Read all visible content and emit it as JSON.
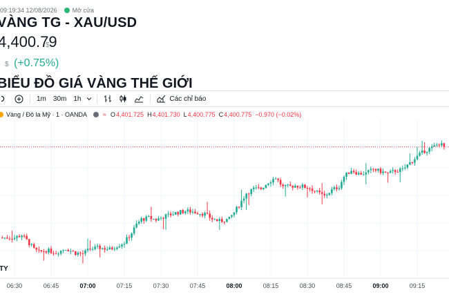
{
  "header": {
    "timestamp": "09:19:34 12/08/2026",
    "market_status": "Mở cửa",
    "title": "VÀNG TG - XAU/USD",
    "price": "4,400.79",
    "price_unit": "$",
    "change_unit": "$",
    "change_pct": "(+0.75%)",
    "chart_heading": "BIỂU ĐỒ GIÁ VÀNG THẾ GIỚI"
  },
  "toolbar": {
    "intervals": [
      "1m",
      "30m",
      "1h"
    ],
    "indicators_label": "Các chỉ báo"
  },
  "legend": {
    "symbol": "Vàng / Đô la Mỹ · 1 · OANDA",
    "o_label": "O",
    "o_value": "4,401.725",
    "h_label": "H",
    "h_value": "4,401.730",
    "l_label": "L",
    "l_value": "4,400.775",
    "c_label": "C",
    "c_value": "4,400.775",
    "change": "−0.970 (−0.02%)"
  },
  "colors": {
    "up": "#22ab94",
    "down": "#f23645",
    "market_open": "#2bb673"
  },
  "chart_data": {
    "type": "candlestick",
    "interval": "1m",
    "x_ticks": [
      "06:30",
      "06:45",
      "07:00",
      "07:15",
      "07:30",
      "07:45",
      "08:00",
      "08:15",
      "08:30",
      "08:45",
      "09:00",
      "09:15"
    ],
    "x_start": "06:25",
    "x_end": "09:26",
    "last_close": 4400.775,
    "grid": true,
    "path": [
      [
        0,
        4376.5
      ],
      [
        3,
        4377.2
      ],
      [
        5,
        4375.8
      ],
      [
        8,
        4373.4
      ],
      [
        10,
        4372.6
      ],
      [
        13,
        4373.1
      ],
      [
        17,
        4372.5
      ],
      [
        21,
        4373.6
      ],
      [
        25,
        4372.4
      ],
      [
        28,
        4372.2
      ],
      [
        31,
        4373.5
      ],
      [
        35,
        4373.8
      ],
      [
        39,
        4373.4
      ],
      [
        43,
        4374.6
      ],
      [
        45,
        4375.2
      ],
      [
        48,
        4377.8
      ],
      [
        50,
        4380.0
      ],
      [
        52,
        4381.4
      ],
      [
        55,
        4381.8
      ],
      [
        58,
        4381.3
      ],
      [
        62,
        4382.3
      ],
      [
        66,
        4383.1
      ],
      [
        70,
        4383.6
      ],
      [
        73,
        4383.5
      ],
      [
        78,
        4382.8
      ],
      [
        81,
        4381.5
      ],
      [
        84,
        4380.9
      ],
      [
        88,
        4381.5
      ],
      [
        91,
        4384.2
      ],
      [
        95,
        4388.4
      ],
      [
        98,
        4389.5
      ],
      [
        101,
        4389.6
      ],
      [
        104,
        4391.4
      ],
      [
        107,
        4392.6
      ],
      [
        110,
        4390.0
      ],
      [
        112,
        4390.1
      ],
      [
        115,
        4390.4
      ],
      [
        118,
        4390.2
      ],
      [
        121,
        4389.8
      ],
      [
        124,
        4388.6
      ],
      [
        127,
        4387.6
      ],
      [
        130,
        4389.2
      ],
      [
        133,
        4390.2
      ],
      [
        135,
        4392.8
      ],
      [
        138,
        4394.6
      ],
      [
        141,
        4393.6
      ],
      [
        144,
        4393.7
      ],
      [
        147,
        4394.8
      ],
      [
        150,
        4394.2
      ],
      [
        153,
        4393.6
      ],
      [
        156,
        4394.4
      ],
      [
        159,
        4394.6
      ],
      [
        162,
        4396.5
      ],
      [
        165,
        4398.2
      ],
      [
        168,
        4399.7
      ],
      [
        171,
        4400.5
      ],
      [
        174,
        4401.7
      ],
      [
        176,
        4400.8
      ]
    ]
  }
}
